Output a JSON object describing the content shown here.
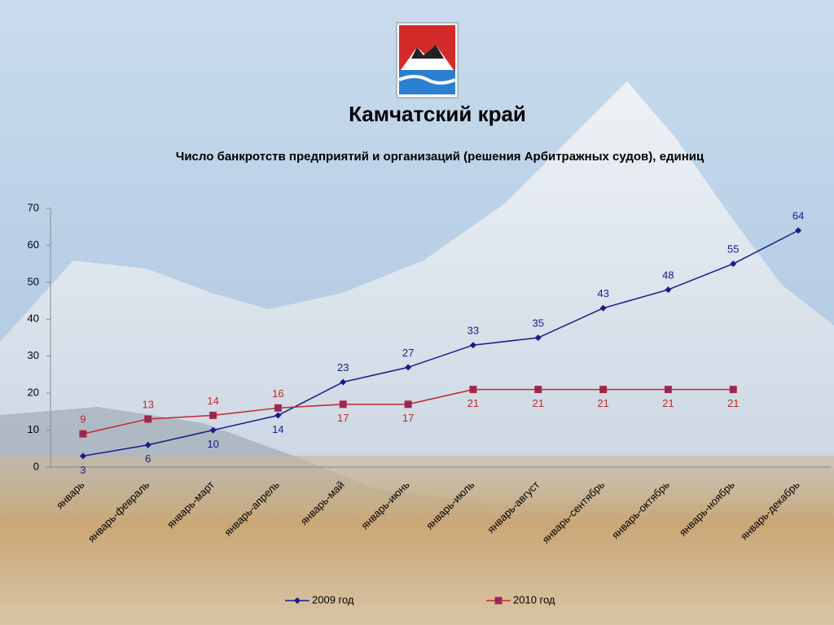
{
  "chart_data": {
    "type": "line",
    "title": "Камчатский край",
    "subtitle": "Число банкротств предприятий и организаций (решения Арбитражных судов), единиц",
    "categories": [
      "январь",
      "январь-февраль",
      "январь-март",
      "январь-апрель",
      "январь-май",
      "январь-июнь",
      "январь-июль",
      "январь-август",
      "январь-сентябрь",
      "январь-октябрь",
      "январь-ноябрь",
      "январь-декабрь"
    ],
    "series": [
      {
        "name": "2009 год",
        "color": "#1a1a8c",
        "values": [
          3,
          6,
          10,
          14,
          23,
          27,
          33,
          35,
          43,
          48,
          55,
          64
        ]
      },
      {
        "name": "2010 год",
        "color": "#c0282a",
        "values": [
          9,
          13,
          14,
          16,
          17,
          17,
          21,
          21,
          21,
          21,
          21,
          null
        ]
      }
    ],
    "ylim": [
      0,
      70
    ],
    "yticks": [
      0,
      10,
      20,
      30,
      40,
      50,
      60,
      70
    ],
    "legend": "bottom"
  }
}
